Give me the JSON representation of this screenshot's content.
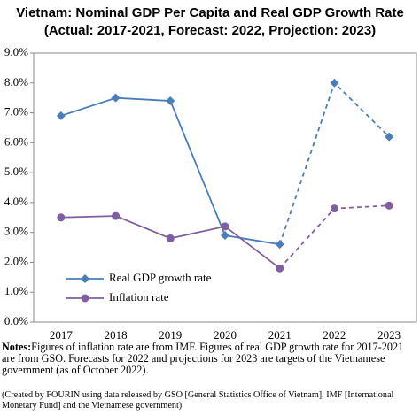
{
  "chart_data": {
    "type": "line",
    "title": "Vietnam: Nominal GDP Per Capita and Real GDP Growth Rate",
    "subtitle": "(Actual: 2017-2021, Forecast: 2022, Projection: 2023)",
    "categories": [
      "2017",
      "2018",
      "2019",
      "2020",
      "2021",
      "2022",
      "2023"
    ],
    "series": [
      {
        "name": "Real GDP growth rate",
        "color": "#4a7ebb",
        "marker": "diamond",
        "values": [
          6.9,
          7.5,
          7.4,
          2.9,
          2.6,
          8.0,
          6.2
        ]
      },
      {
        "name": "Inflation rate",
        "color": "#7f5fa0",
        "marker": "circle",
        "values": [
          3.5,
          3.55,
          2.8,
          3.2,
          1.8,
          3.8,
          3.9
        ]
      }
    ],
    "dashed_from_index": 4,
    "ylim": [
      0,
      9
    ],
    "yticks": [
      {
        "value": 0,
        "label": "0.0%"
      },
      {
        "value": 1,
        "label": "1.0%"
      },
      {
        "value": 2,
        "label": "2.0%"
      },
      {
        "value": 3,
        "label": "3.0%"
      },
      {
        "value": 4,
        "label": "4.0%"
      },
      {
        "value": 5,
        "label": "5.0%"
      },
      {
        "value": 6,
        "label": "6.0%"
      },
      {
        "value": 7,
        "label": "7.0%"
      },
      {
        "value": 8,
        "label": "8.0%"
      },
      {
        "value": 9,
        "label": "9.0%"
      }
    ],
    "grid": false,
    "legend": "lower-left",
    "notes_label": "Notes:",
    "notes": "Figures of inflation rate are from IMF. Figures of real GDP growth rate for 2017-2021 are from GSO. Forecasts for 2022 and projections for 2023 are targets of the Vietnamese government (as of October 2022).",
    "source": "(Created by FOURIN using data released by GSO [General Statistics Office of Vietnam], IMF [International Monetary Fund] and the Vietnamese government)"
  }
}
